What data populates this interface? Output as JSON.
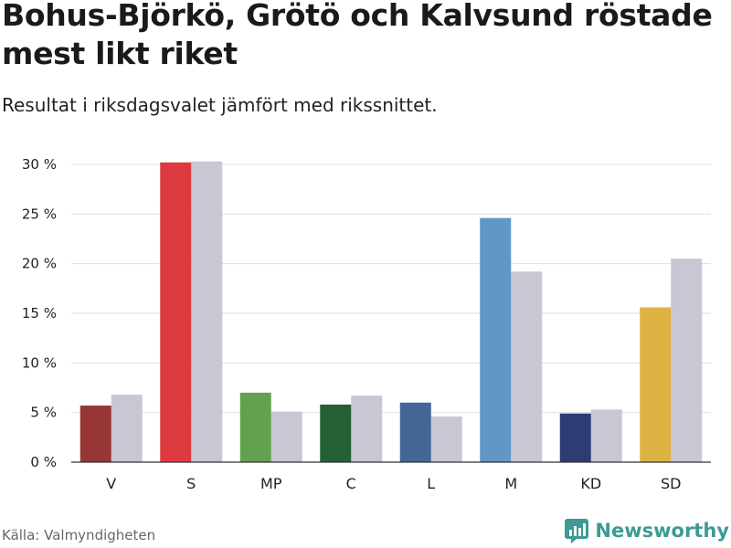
{
  "title": "Bohus-Björkö, Grötö och Kalvsund röstade mest likt riket",
  "subtitle": "Resultat i riksdagsvalet jämfört med rikssnittet.",
  "source": "Källa: Valmyndigheten",
  "brand": "Newsworthy",
  "colors": {
    "comparison": "#c8c7d3",
    "grid": "#dddddd",
    "axis": "#333333",
    "brand": "#3d9a94"
  },
  "chart_data": {
    "type": "bar",
    "categories": [
      "V",
      "S",
      "MP",
      "C",
      "L",
      "M",
      "KD",
      "SD"
    ],
    "series": [
      {
        "values": [
          5.7,
          30.2,
          7.0,
          5.8,
          6.0,
          24.6,
          4.9,
          15.6
        ],
        "colors": [
          "#973735",
          "#dd3a40",
          "#63a14f",
          "#255f36",
          "#436794",
          "#6197c7",
          "#2f3b74",
          "#deb242"
        ]
      },
      {
        "values": [
          6.8,
          30.3,
          5.1,
          6.7,
          4.6,
          19.2,
          5.3,
          20.5
        ],
        "color": "#c8c7d3"
      }
    ],
    "yticks": [
      0,
      5,
      10,
      15,
      20,
      25,
      30
    ],
    "ytick_labels": [
      "0 %",
      "5 %",
      "10 %",
      "15 %",
      "20 %",
      "25 %",
      "30 %"
    ],
    "ylim": [
      0,
      30
    ],
    "grid": true,
    "xlabel": "",
    "ylabel": ""
  }
}
